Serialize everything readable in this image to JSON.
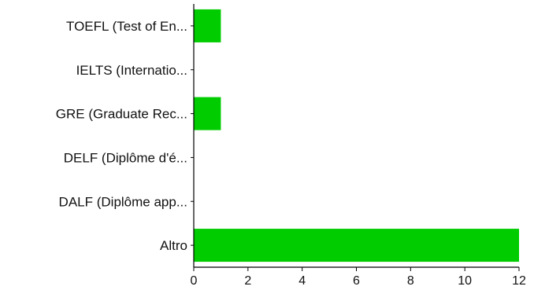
{
  "chart_data": {
    "type": "bar",
    "orientation": "horizontal",
    "title": "",
    "xlabel": "",
    "ylabel": "",
    "categories": [
      "TOEFL (Test of En...",
      "IELTS (Internatio...",
      "GRE (Graduate Rec...",
      "DELF (Diplôme d'é...",
      "DALF (Diplôme app...",
      "Altro"
    ],
    "values": [
      1,
      0,
      1,
      0,
      0,
      12
    ],
    "xlim": [
      0,
      12
    ],
    "xticks": [
      0,
      2,
      4,
      6,
      8,
      10,
      12
    ],
    "grid": false,
    "legend": "none",
    "bar_color": "#00cc00",
    "axis_color": "#000000"
  }
}
